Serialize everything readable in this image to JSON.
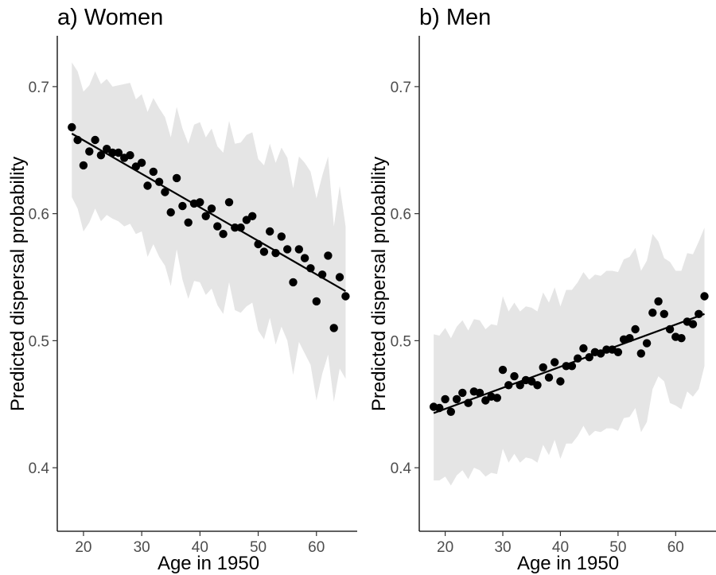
{
  "chart_data": [
    {
      "type": "scatter",
      "title": "a) Women",
      "xlabel": "Age in 1950",
      "ylabel": "Predicted dispersal probability",
      "xlim": [
        15.5,
        67
      ],
      "ylim": [
        0.35,
        0.74
      ],
      "xticks": [
        20,
        30,
        40,
        50,
        60
      ],
      "yticks": [
        0.4,
        0.5,
        0.6,
        0.7
      ],
      "grid": false,
      "colors": {
        "points": "#000000",
        "ribbon": "#e5e5e5",
        "line": "#000000"
      },
      "points": {
        "x": [
          18,
          19,
          20,
          21,
          22,
          23,
          24,
          25,
          26,
          27,
          28,
          29,
          30,
          31,
          32,
          33,
          34,
          35,
          36,
          37,
          38,
          39,
          40,
          41,
          42,
          43,
          44,
          45,
          46,
          47,
          48,
          49,
          50,
          51,
          52,
          53,
          54,
          55,
          56,
          57,
          58,
          59,
          60,
          61,
          62,
          63,
          64,
          65
        ],
        "y": [
          0.668,
          0.658,
          0.638,
          0.649,
          0.658,
          0.646,
          0.651,
          0.648,
          0.648,
          0.644,
          0.646,
          0.637,
          0.64,
          0.622,
          0.633,
          0.625,
          0.617,
          0.601,
          0.628,
          0.606,
          0.593,
          0.608,
          0.609,
          0.598,
          0.604,
          0.59,
          0.584,
          0.609,
          0.589,
          0.589,
          0.595,
          0.598,
          0.576,
          0.57,
          0.586,
          0.569,
          0.582,
          0.572,
          0.546,
          0.572,
          0.565,
          0.557,
          0.531,
          0.552,
          0.567,
          0.51,
          0.55,
          0.535
        ]
      },
      "fit": {
        "x": [
          18,
          65
        ],
        "y": [
          0.663,
          0.539
        ]
      },
      "band": {
        "x": [
          18,
          19,
          20,
          21,
          22,
          23,
          24,
          25,
          26,
          27,
          28,
          29,
          30,
          31,
          32,
          33,
          34,
          35,
          36,
          37,
          38,
          39,
          40,
          41,
          42,
          43,
          44,
          45,
          46,
          47,
          48,
          49,
          50,
          51,
          52,
          53,
          54,
          55,
          56,
          57,
          58,
          59,
          60,
          61,
          62,
          63,
          64,
          65
        ],
        "upper": [
          0.719,
          0.712,
          0.696,
          0.701,
          0.712,
          0.702,
          0.706,
          0.7,
          0.701,
          0.702,
          0.703,
          0.69,
          0.694,
          0.68,
          0.691,
          0.683,
          0.676,
          0.66,
          0.684,
          0.667,
          0.655,
          0.67,
          0.672,
          0.66,
          0.667,
          0.653,
          0.648,
          0.673,
          0.655,
          0.656,
          0.662,
          0.664,
          0.643,
          0.638,
          0.655,
          0.64,
          0.652,
          0.644,
          0.62,
          0.645,
          0.64,
          0.633,
          0.612,
          0.63,
          0.645,
          0.59,
          0.622,
          0.59
        ],
        "lower": [
          0.613,
          0.604,
          0.586,
          0.593,
          0.604,
          0.594,
          0.599,
          0.596,
          0.594,
          0.59,
          0.592,
          0.584,
          0.586,
          0.566,
          0.576,
          0.566,
          0.559,
          0.543,
          0.572,
          0.548,
          0.533,
          0.547,
          0.546,
          0.536,
          0.541,
          0.528,
          0.521,
          0.546,
          0.524,
          0.522,
          0.527,
          0.53,
          0.508,
          0.501,
          0.518,
          0.497,
          0.511,
          0.5,
          0.473,
          0.499,
          0.49,
          0.481,
          0.453,
          0.474,
          0.489,
          0.452,
          0.478,
          0.47
        ]
      }
    },
    {
      "type": "scatter",
      "title": "b) Men",
      "xlabel": "Age in 1950",
      "ylabel": "Predicted dispersal probability",
      "xlim": [
        15.5,
        67
      ],
      "ylim": [
        0.35,
        0.74
      ],
      "xticks": [
        20,
        30,
        40,
        50,
        60
      ],
      "yticks": [
        0.4,
        0.5,
        0.6,
        0.7
      ],
      "grid": false,
      "colors": {
        "points": "#000000",
        "ribbon": "#e5e5e5",
        "line": "#000000"
      },
      "points": {
        "x": [
          18,
          19,
          20,
          21,
          22,
          23,
          24,
          25,
          26,
          27,
          28,
          29,
          30,
          31,
          32,
          33,
          34,
          35,
          36,
          37,
          38,
          39,
          40,
          41,
          42,
          43,
          44,
          45,
          46,
          47,
          48,
          49,
          50,
          51,
          52,
          53,
          54,
          55,
          56,
          57,
          58,
          59,
          60,
          61,
          62,
          63,
          64,
          65
        ],
        "y": [
          0.448,
          0.447,
          0.454,
          0.444,
          0.454,
          0.459,
          0.451,
          0.46,
          0.459,
          0.453,
          0.456,
          0.455,
          0.477,
          0.465,
          0.472,
          0.465,
          0.469,
          0.468,
          0.465,
          0.479,
          0.471,
          0.483,
          0.468,
          0.48,
          0.48,
          0.486,
          0.494,
          0.487,
          0.491,
          0.49,
          0.493,
          0.493,
          0.491,
          0.501,
          0.502,
          0.509,
          0.49,
          0.498,
          0.522,
          0.531,
          0.521,
          0.509,
          0.503,
          0.502,
          0.515,
          0.513,
          0.521,
          0.535
        ]
      },
      "fit": {
        "x": [
          18,
          65
        ],
        "y": [
          0.443,
          0.521
        ]
      },
      "band": {
        "x": [
          18,
          19,
          20,
          21,
          22,
          23,
          24,
          25,
          26,
          27,
          28,
          29,
          30,
          31,
          32,
          33,
          34,
          35,
          36,
          37,
          38,
          39,
          40,
          41,
          42,
          43,
          44,
          45,
          46,
          47,
          48,
          49,
          50,
          51,
          52,
          53,
          54,
          55,
          56,
          57,
          58,
          59,
          60,
          61,
          62,
          63,
          64,
          65
        ],
        "upper": [
          0.505,
          0.504,
          0.51,
          0.502,
          0.511,
          0.516,
          0.508,
          0.517,
          0.516,
          0.509,
          0.513,
          0.512,
          0.535,
          0.523,
          0.53,
          0.523,
          0.527,
          0.526,
          0.523,
          0.538,
          0.53,
          0.542,
          0.527,
          0.54,
          0.54,
          0.546,
          0.554,
          0.548,
          0.552,
          0.551,
          0.555,
          0.555,
          0.554,
          0.564,
          0.566,
          0.573,
          0.555,
          0.563,
          0.584,
          0.578,
          0.565,
          0.562,
          0.555,
          0.555,
          0.569,
          0.568,
          0.578,
          0.589
        ],
        "lower": [
          0.39,
          0.39,
          0.393,
          0.386,
          0.394,
          0.398,
          0.391,
          0.4,
          0.398,
          0.393,
          0.396,
          0.395,
          0.415,
          0.404,
          0.411,
          0.404,
          0.408,
          0.407,
          0.404,
          0.418,
          0.41,
          0.422,
          0.407,
          0.419,
          0.419,
          0.425,
          0.433,
          0.425,
          0.429,
          0.428,
          0.431,
          0.431,
          0.429,
          0.439,
          0.44,
          0.447,
          0.428,
          0.436,
          0.462,
          0.472,
          0.468,
          0.451,
          0.449,
          0.446,
          0.46,
          0.456,
          0.462,
          0.48
        ]
      }
    }
  ]
}
